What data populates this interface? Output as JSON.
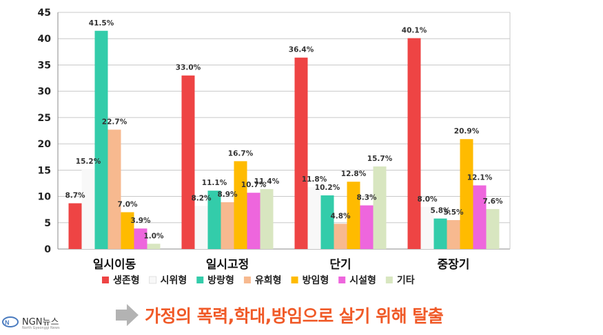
{
  "chart_data": {
    "type": "bar",
    "categories": [
      "일시이동",
      "일시고정",
      "단기",
      "중장기"
    ],
    "series": [
      {
        "name": "생존형",
        "color": "#ee4444",
        "values": [
          8.7,
          33.0,
          36.4,
          40.1
        ],
        "labels": [
          "8.7%",
          "33.0%",
          "36.4%",
          "40.1%"
        ]
      },
      {
        "name": "시위형",
        "color": "#f8f8f8",
        "values": [
          15.2,
          8.2,
          11.8,
          8.0
        ],
        "labels": [
          "15.2%",
          "8.2%",
          "11.8%",
          "8.0%"
        ]
      },
      {
        "name": "방랑형",
        "color": "#33ccaa",
        "values": [
          41.5,
          11.1,
          10.2,
          5.8
        ],
        "labels": [
          "41.5%",
          "11.1%",
          "10.2%",
          "5.8%"
        ]
      },
      {
        "name": "유희형",
        "color": "#f7b98f",
        "values": [
          22.7,
          8.9,
          4.8,
          5.5
        ],
        "labels": [
          "22.7%",
          "8.9%",
          "4.8%",
          "5.5%"
        ]
      },
      {
        "name": "방임형",
        "color": "#ffbb00",
        "values": [
          7.0,
          16.7,
          12.8,
          20.9
        ],
        "labels": [
          "7.0%",
          "16.7%",
          "12.8%",
          "20.9%"
        ]
      },
      {
        "name": "시설형",
        "color": "#ee66dd",
        "values": [
          3.9,
          10.7,
          8.3,
          12.1
        ],
        "labels": [
          "3.9%",
          "10.7%",
          "8.3%",
          "12.1%"
        ]
      },
      {
        "name": "기타",
        "color": "#d8e6c0",
        "values": [
          1.0,
          11.4,
          15.7,
          7.6
        ],
        "labels": [
          "1.0%",
          "11.4%",
          "15.7%",
          "7.6%"
        ]
      }
    ],
    "ylim": [
      0,
      45
    ],
    "yticks": [
      0,
      5,
      10,
      15,
      20,
      25,
      30,
      35,
      40,
      45
    ],
    "grid": true,
    "legend": "bottom"
  },
  "caption": {
    "text": "가정의 폭력,학대,방임으로 살기 위해 탈출",
    "color": "#f05a28",
    "arrow_color": "#b3b3b3"
  },
  "logo": {
    "name": "NGN뉴스",
    "sub": "North Gyeonggi News"
  }
}
